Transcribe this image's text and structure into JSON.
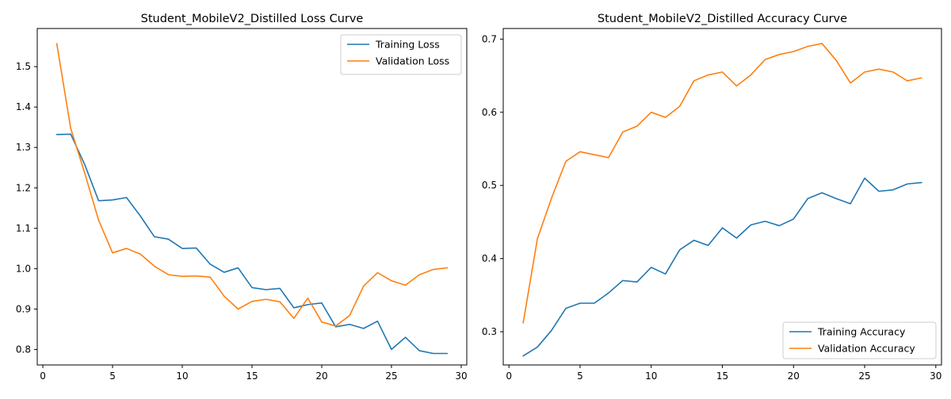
{
  "chart_data": [
    {
      "type": "line",
      "title": "Student_MobileV2_Distilled Loss Curve",
      "xlabel": "",
      "ylabel": "",
      "xlim": [
        -0.4,
        30.4
      ],
      "ylim": [
        0.7616,
        1.5944
      ],
      "xticks": [
        0,
        5,
        10,
        15,
        20,
        25,
        30
      ],
      "yticks": [
        0.8,
        0.9,
        1.0,
        1.1,
        1.2,
        1.3,
        1.4,
        1.5
      ],
      "ytick_format": 1,
      "grid": false,
      "legend_position": "upper right",
      "x": [
        1,
        2,
        3,
        4,
        5,
        6,
        7,
        8,
        9,
        10,
        11,
        12,
        13,
        14,
        15,
        16,
        17,
        18,
        19,
        20,
        21,
        22,
        23,
        24,
        25,
        26,
        27,
        28,
        29
      ],
      "series": [
        {
          "name": "Training Loss",
          "color": "#1f77b4",
          "values": [
            1.332,
            1.333,
            1.258,
            1.168,
            1.17,
            1.176,
            1.13,
            1.079,
            1.073,
            1.05,
            1.051,
            1.011,
            0.991,
            1.002,
            0.953,
            0.948,
            0.951,
            0.903,
            0.911,
            0.915,
            0.856,
            0.862,
            0.852,
            0.87,
            0.8,
            0.83,
            0.797,
            0.79,
            0.79
          ]
        },
        {
          "name": "Validation Loss",
          "color": "#ff7f0e",
          "values": [
            1.557,
            1.347,
            1.237,
            1.12,
            1.039,
            1.05,
            1.036,
            1.006,
            0.985,
            0.981,
            0.982,
            0.979,
            0.932,
            0.9,
            0.919,
            0.924,
            0.918,
            0.877,
            0.927,
            0.868,
            0.858,
            0.884,
            0.957,
            0.99,
            0.97,
            0.959,
            0.985,
            0.998,
            1.002
          ]
        }
      ]
    },
    {
      "type": "line",
      "title": "Student_MobileV2_Distilled Accuracy Curve",
      "xlabel": "",
      "ylabel": "",
      "xlim": [
        -0.4,
        30.4
      ],
      "ylim": [
        0.2546,
        0.7145
      ],
      "xticks": [
        0,
        5,
        10,
        15,
        20,
        25,
        30
      ],
      "yticks": [
        0.3,
        0.4,
        0.5,
        0.6,
        0.7
      ],
      "ytick_format": 1,
      "grid": false,
      "legend_position": "lower right",
      "x": [
        1,
        2,
        3,
        4,
        5,
        6,
        7,
        8,
        9,
        10,
        11,
        12,
        13,
        14,
        15,
        16,
        17,
        18,
        19,
        20,
        21,
        22,
        23,
        24,
        25,
        26,
        27,
        28,
        29
      ],
      "series": [
        {
          "name": "Training Accuracy",
          "color": "#1f77b4",
          "values": [
            0.267,
            0.279,
            0.302,
            0.332,
            0.339,
            0.339,
            0.353,
            0.37,
            0.368,
            0.388,
            0.379,
            0.412,
            0.425,
            0.418,
            0.442,
            0.428,
            0.446,
            0.451,
            0.445,
            0.454,
            0.482,
            0.49,
            0.482,
            0.475,
            0.51,
            0.492,
            0.494,
            0.502,
            0.504
          ]
        },
        {
          "name": "Validation Accuracy",
          "color": "#ff7f0e",
          "values": [
            0.312,
            0.427,
            0.483,
            0.533,
            0.546,
            0.542,
            0.538,
            0.573,
            0.581,
            0.6,
            0.593,
            0.608,
            0.643,
            0.651,
            0.655,
            0.636,
            0.651,
            0.672,
            0.679,
            0.683,
            0.69,
            0.694,
            0.671,
            0.64,
            0.655,
            0.659,
            0.655,
            0.643,
            0.647
          ]
        }
      ]
    }
  ]
}
